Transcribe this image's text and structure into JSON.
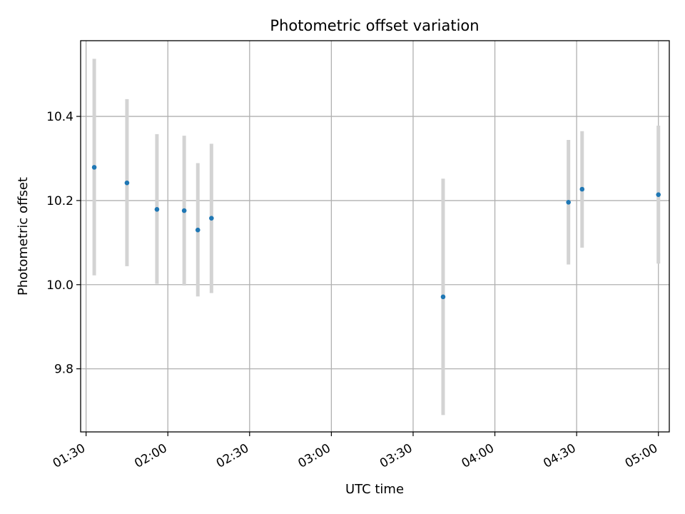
{
  "chart_data": {
    "type": "scatter",
    "title": "Photometric offset variation",
    "xlabel": "UTC time",
    "ylabel": "Photometric offset",
    "x_unit": "time (HH:MM UTC)",
    "xlim": [
      "01:28",
      "05:04"
    ],
    "ylim": [
      9.65,
      10.58
    ],
    "x_ticks": [
      "01:30",
      "02:00",
      "02:30",
      "03:00",
      "03:30",
      "04:00",
      "04:30",
      "05:00"
    ],
    "y_ticks": [
      9.8,
      10.0,
      10.2,
      10.4
    ],
    "y_tick_labels": [
      "9.8",
      "10.0",
      "10.2",
      "10.4"
    ],
    "grid": true,
    "x_tick_rotation": "30deg",
    "point_color": "#1f77b4",
    "errorbar_color": "#d3d3d3",
    "points": [
      {
        "time": "01:33",
        "y": 10.279,
        "ylow": 10.022,
        "yhigh": 10.537
      },
      {
        "time": "01:45",
        "y": 10.242,
        "ylow": 10.044,
        "yhigh": 10.441
      },
      {
        "time": "01:56",
        "y": 10.179,
        "ylow": 10.002,
        "yhigh": 10.358
      },
      {
        "time": "02:06",
        "y": 10.176,
        "ylow": 9.998,
        "yhigh": 10.354
      },
      {
        "time": "02:11",
        "y": 10.13,
        "ylow": 9.972,
        "yhigh": 10.289
      },
      {
        "time": "02:16",
        "y": 10.158,
        "ylow": 9.98,
        "yhigh": 10.335
      },
      {
        "time": "03:41",
        "y": 9.971,
        "ylow": 9.69,
        "yhigh": 10.252
      },
      {
        "time": "04:27",
        "y": 10.196,
        "ylow": 10.048,
        "yhigh": 10.344
      },
      {
        "time": "04:32",
        "y": 10.227,
        "ylow": 10.088,
        "yhigh": 10.365
      },
      {
        "time": "05:00",
        "y": 10.214,
        "ylow": 10.05,
        "yhigh": 10.378
      }
    ]
  }
}
